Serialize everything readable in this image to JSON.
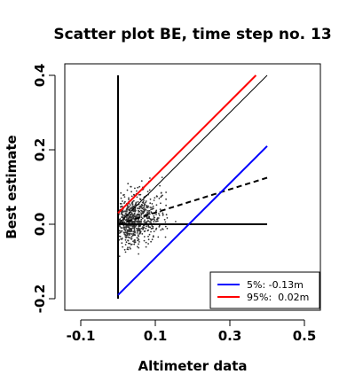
{
  "chart_data": {
    "type": "scatter",
    "title": "Scatter plot BE, time step no. 13",
    "xlabel": "Altimeter data",
    "ylabel": "Best estimate",
    "xlim": [
      -0.1,
      0.5
    ],
    "ylim": [
      -0.2,
      0.4
    ],
    "xticks": [
      "-0.1",
      "0.1",
      "0.3",
      "0.5"
    ],
    "xtick_values": [
      -0.1,
      0.1,
      0.3,
      0.5
    ],
    "yticks": [
      "-0.2",
      "0.0",
      "0.2",
      "0.4"
    ],
    "ytick_values": [
      -0.2,
      0.0,
      0.2,
      0.4
    ],
    "grid": false,
    "legend_position": "bottom-right",
    "legend": [
      {
        "label": "5%: -0.13m",
        "color": "#0000ff"
      },
      {
        "label": "95%:  0.02m",
        "color": "#ff0000"
      }
    ],
    "lines": [
      {
        "role": "identity",
        "color": "#000000",
        "style": "solid",
        "x": [
          0.0,
          0.4
        ],
        "y": [
          0.0,
          0.4
        ]
      },
      {
        "role": "regression",
        "color": "#000000",
        "style": "dashed",
        "x": [
          0.0,
          0.4
        ],
        "y": [
          0.0,
          0.125
        ]
      },
      {
        "role": "zero-horizontal",
        "color": "#000000",
        "style": "solid",
        "x": [
          0.0,
          0.4
        ],
        "y": [
          0.0,
          0.0
        ]
      },
      {
        "role": "zero-vertical",
        "color": "#000000",
        "style": "solid",
        "x": [
          0.0,
          0.0
        ],
        "y": [
          -0.2,
          0.4
        ]
      },
      {
        "role": "5%",
        "color": "#0000ff",
        "style": "solid",
        "x": [
          0.0,
          0.4
        ],
        "y": [
          -0.19,
          0.21
        ]
      },
      {
        "role": "95%",
        "color": "#ff0000",
        "style": "solid",
        "x": [
          0.0,
          0.37
        ],
        "y": [
          0.03,
          0.4
        ]
      }
    ],
    "scatter": {
      "color": "#333333",
      "n_points": 700,
      "x_mean": 0.06,
      "x_spread": 0.07,
      "y_slope": 0.3,
      "y_noise": 0.05,
      "x_range": [
        0.0,
        0.37
      ],
      "y_range": [
        -0.19,
        0.28
      ]
    }
  }
}
